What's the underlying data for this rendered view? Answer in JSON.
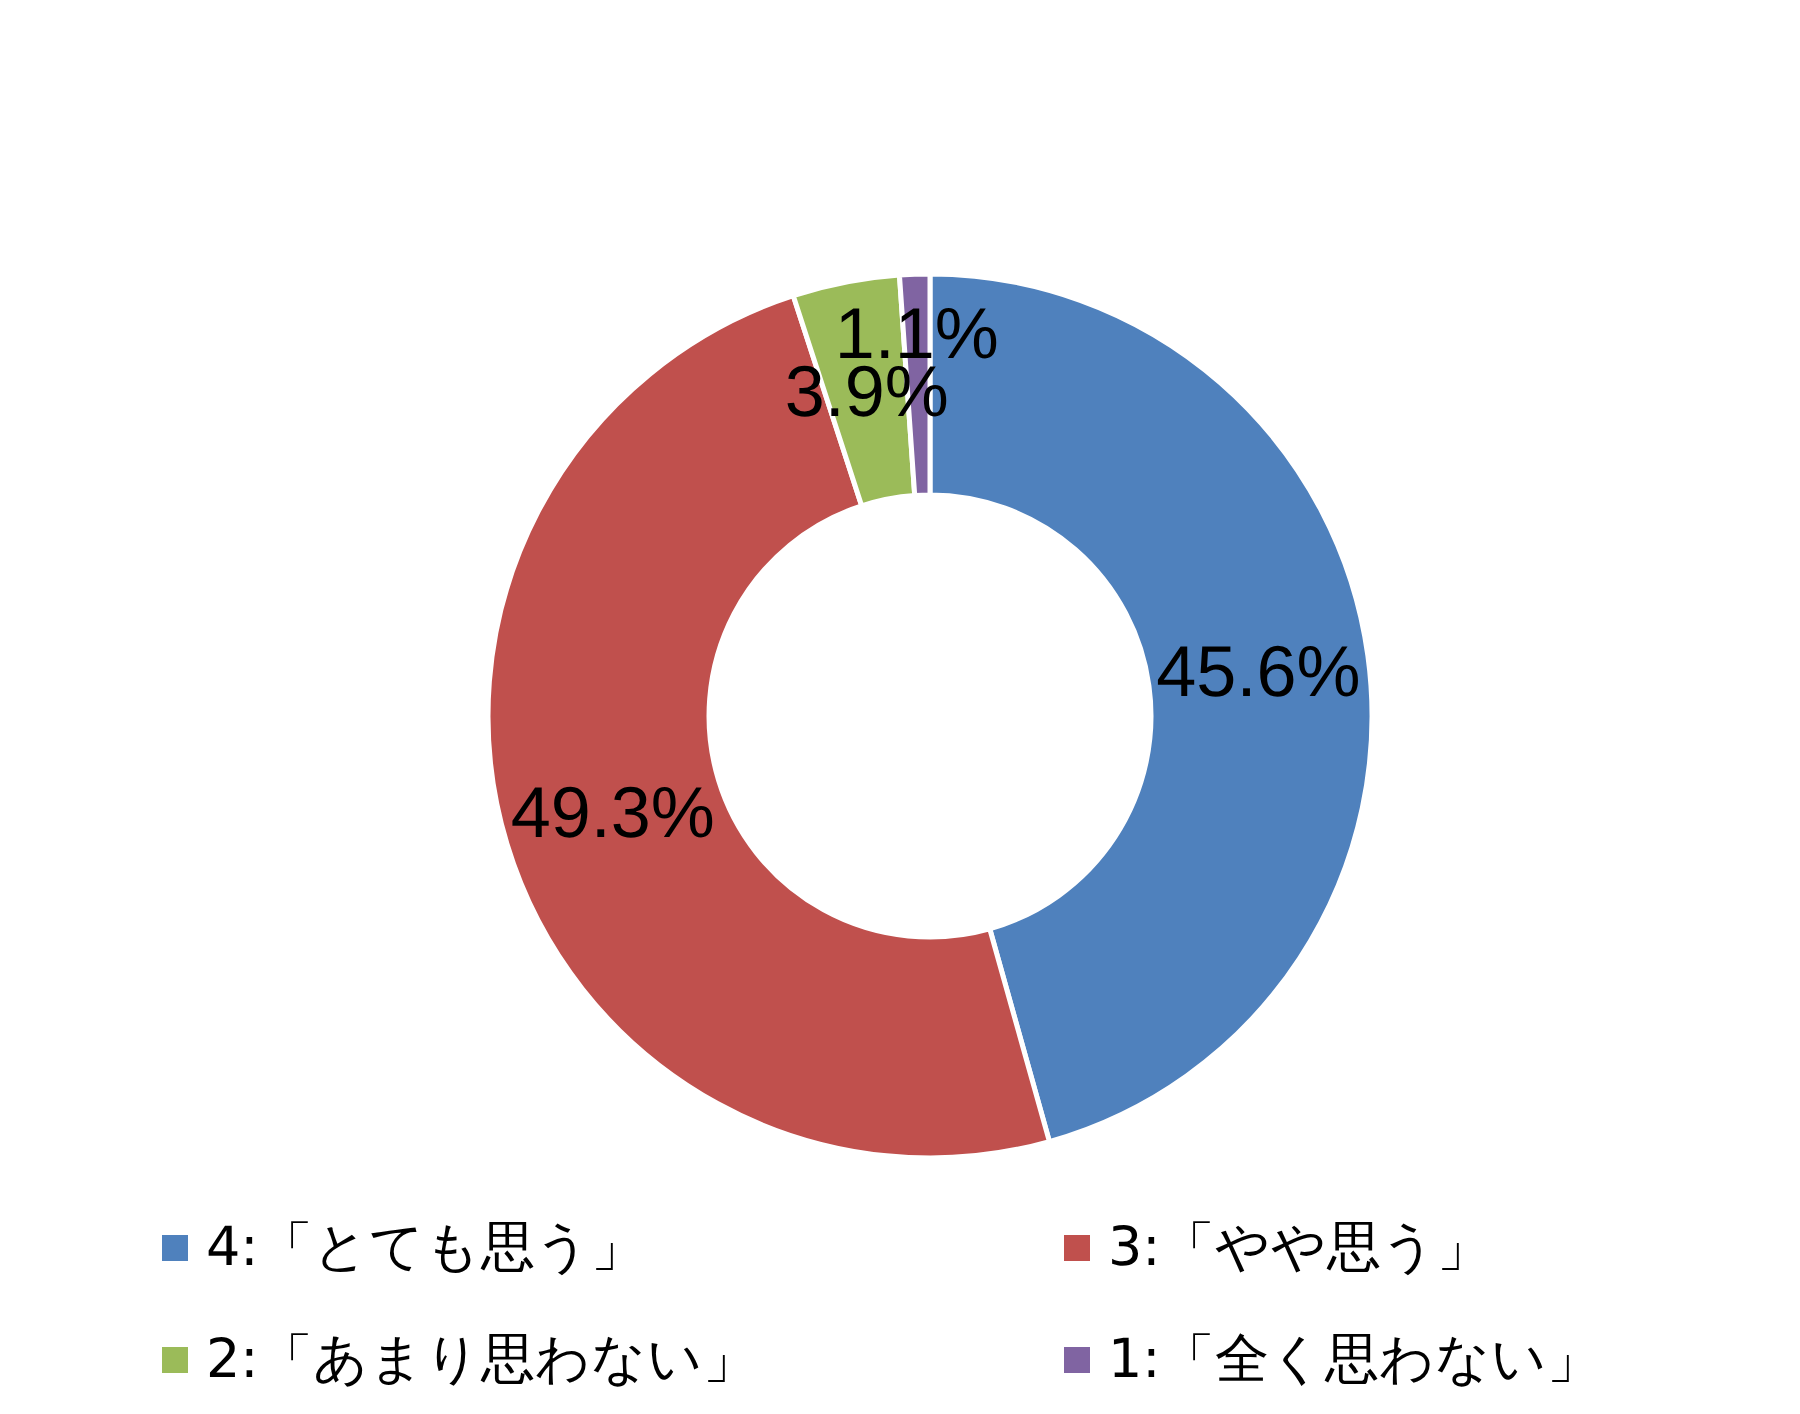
{
  "chart_data": {
    "type": "donut",
    "categories": [
      "4:「とても思う」",
      "3:「やや思う」",
      "2:「あまり思わない」",
      "1:「全く思わない」"
    ],
    "values": [
      45.6,
      49.3,
      3.9,
      1.1
    ],
    "colors": [
      "#4f81bd",
      "#c0504d",
      "#9bbb59",
      "#8064a2"
    ],
    "value_labels": [
      "45.6%",
      "49.3%",
      "3.9%",
      "1.1%"
    ],
    "legend": "bottom"
  }
}
